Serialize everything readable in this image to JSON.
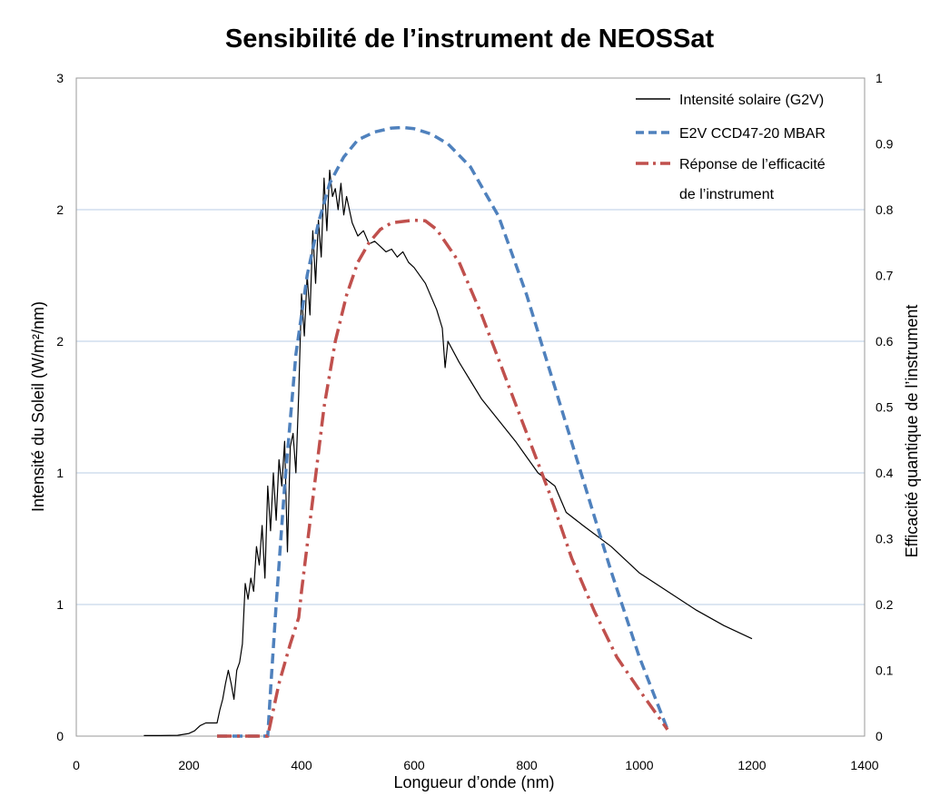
{
  "chart_data": {
    "type": "line",
    "title": "Sensibilité de l’instrument de NEOSSat",
    "xlabel": "Longueur d’onde (nm)",
    "ylabel_left": "Intensité du Soleil (W/m²/nm)",
    "ylabel_right": "Efficacité quantique de l’instrument",
    "xlim": [
      0,
      1400
    ],
    "ylim_left": [
      0,
      2.5
    ],
    "ylim_right": [
      0,
      1
    ],
    "x_ticks": [
      "0",
      "200",
      "400",
      "600",
      "800",
      "1000",
      "1200",
      "1400"
    ],
    "y_left_ticks": [
      "0",
      "1",
      "1",
      "2",
      "2",
      "3"
    ],
    "y_right_ticks": [
      "0",
      "0.1",
      "0.2",
      "0.3",
      "0.4",
      "0.5",
      "0.6",
      "0.7",
      "0.8",
      "0.9",
      "1"
    ],
    "grid": true,
    "legend_position": "top-right",
    "series": [
      {
        "name": "Intensité solaire (G2V)",
        "axis": "left",
        "color": "#000000",
        "style": "solid",
        "x": [
          120,
          150,
          180,
          200,
          210,
          220,
          230,
          240,
          250,
          255,
          260,
          265,
          270,
          275,
          280,
          285,
          290,
          295,
          300,
          305,
          310,
          315,
          320,
          325,
          330,
          335,
          340,
          345,
          350,
          355,
          360,
          365,
          370,
          375,
          380,
          385,
          390,
          395,
          400,
          405,
          410,
          415,
          420,
          425,
          430,
          435,
          440,
          445,
          450,
          455,
          460,
          465,
          470,
          475,
          480,
          490,
          500,
          510,
          520,
          530,
          540,
          550,
          560,
          570,
          580,
          590,
          600,
          620,
          640,
          650,
          655,
          660,
          680,
          700,
          720,
          750,
          780,
          800,
          820,
          850,
          870,
          900,
          950,
          1000,
          1050,
          1100,
          1150,
          1200
        ],
        "values": [
          0.002,
          0.002,
          0.003,
          0.01,
          0.02,
          0.04,
          0.05,
          0.05,
          0.05,
          0.1,
          0.14,
          0.2,
          0.25,
          0.2,
          0.14,
          0.25,
          0.28,
          0.35,
          0.58,
          0.52,
          0.6,
          0.55,
          0.72,
          0.65,
          0.8,
          0.6,
          0.95,
          0.78,
          1.0,
          0.82,
          1.05,
          0.95,
          1.12,
          0.7,
          1.1,
          1.15,
          1.0,
          1.3,
          1.68,
          1.52,
          1.75,
          1.6,
          1.92,
          1.72,
          1.96,
          1.82,
          2.12,
          1.92,
          2.15,
          2.05,
          2.08,
          2.0,
          2.1,
          1.98,
          2.05,
          1.95,
          1.9,
          1.92,
          1.87,
          1.88,
          1.86,
          1.84,
          1.85,
          1.82,
          1.84,
          1.8,
          1.78,
          1.72,
          1.62,
          1.55,
          1.4,
          1.5,
          1.42,
          1.35,
          1.28,
          1.2,
          1.12,
          1.06,
          1.0,
          0.95,
          0.85,
          0.8,
          0.72,
          0.62,
          0.55,
          0.48,
          0.42,
          0.37
        ]
      },
      {
        "name": "E2V CCD47-20 MBAR",
        "axis": "right",
        "color": "#4f81bd",
        "style": "dashed",
        "x": [
          250,
          300,
          340,
          345,
          355,
          370,
          390,
          410,
          430,
          450,
          475,
          500,
          530,
          560,
          580,
          600,
          630,
          660,
          700,
          750,
          800,
          850,
          900,
          950,
          1000,
          1050
        ],
        "values": [
          0.0,
          0.0,
          0.0,
          0.07,
          0.2,
          0.38,
          0.58,
          0.7,
          0.78,
          0.84,
          0.88,
          0.906,
          0.918,
          0.924,
          0.925,
          0.923,
          0.915,
          0.9,
          0.865,
          0.79,
          0.67,
          0.53,
          0.39,
          0.25,
          0.12,
          0.01
        ]
      },
      {
        "name": "Réponse de l’efficacité de l’instrument",
        "axis": "right",
        "color": "#c0504d",
        "style": "dashdot",
        "x": [
          250,
          300,
          340,
          345,
          360,
          380,
          395,
          400,
          420,
          440,
          460,
          480,
          500,
          520,
          540,
          560,
          580,
          600,
          620,
          640,
          680,
          720,
          760,
          800,
          840,
          880,
          920,
          960,
          1000,
          1050
        ],
        "values": [
          0.0,
          0.0,
          0.0,
          0.02,
          0.08,
          0.14,
          0.18,
          0.22,
          0.36,
          0.5,
          0.6,
          0.67,
          0.72,
          0.75,
          0.77,
          0.78,
          0.782,
          0.784,
          0.783,
          0.77,
          0.72,
          0.64,
          0.55,
          0.46,
          0.37,
          0.27,
          0.19,
          0.12,
          0.07,
          0.01
        ]
      }
    ]
  },
  "legend": {
    "items": [
      {
        "label": "Intensité solaire (G2V)"
      },
      {
        "label": "E2V CCD47-20 MBAR"
      },
      {
        "label": "Réponse de l’efficacité",
        "label2": "de l’instrument"
      }
    ]
  }
}
